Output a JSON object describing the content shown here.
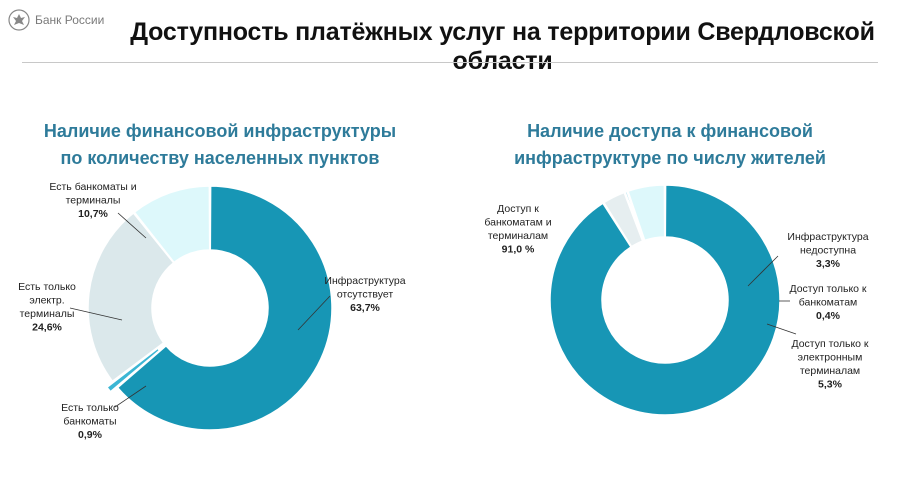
{
  "header": {
    "logo_text": "Банк России",
    "title": "Доступность платёжных услуг на территории Свердловской области"
  },
  "chart_data": [
    {
      "type": "pie",
      "title_lines": [
        "Наличие финансовой инфраструктуры",
        "по количеству населенных пунктов"
      ],
      "unit": "%",
      "slices": [
        {
          "label_lines": [
            "Инфраструктура",
            "отсутствует"
          ],
          "value": 63.7,
          "value_text": "63,7%",
          "color": "#1796b5",
          "exploded": false
        },
        {
          "label_lines": [
            "Есть только",
            "банкоматы"
          ],
          "value": 0.9,
          "value_text": "0,9%",
          "color": "#3cb6d4",
          "exploded": true
        },
        {
          "label_lines": [
            "Есть только",
            "электр.",
            "терминалы"
          ],
          "value": 24.6,
          "value_text": "24,6%",
          "color": "#dbe8eb",
          "exploded": false
        },
        {
          "label_lines": [
            "Есть банкоматы и",
            "терминалы"
          ],
          "value": 10.7,
          "value_text": "10,7%",
          "color": "#ddf8fb",
          "exploded": false
        }
      ]
    },
    {
      "type": "pie",
      "title_lines": [
        "Наличие доступа к финансовой",
        "инфраструктуре по числу жителей"
      ],
      "unit": "%",
      "slices": [
        {
          "label_lines": [
            "Доступ к",
            "банкоматам и",
            "терминалам"
          ],
          "value": 91.0,
          "value_text": "91,0 %",
          "color": "#1796b5",
          "exploded": false
        },
        {
          "label_lines": [
            "Инфраструктура",
            "недоступна"
          ],
          "value": 3.3,
          "value_text": "3,3%",
          "color": "#e6eef0",
          "exploded": false
        },
        {
          "label_lines": [
            "Доступ только к",
            "банкоматам"
          ],
          "value": 0.4,
          "value_text": "0,4%",
          "color": "#3cb6d4",
          "exploded": false
        },
        {
          "label_lines": [
            "Доступ только к",
            "электронным",
            "терминалам"
          ],
          "value": 5.3,
          "value_text": "5,3%",
          "color": "#ddf8fb",
          "exploded": false
        }
      ]
    }
  ]
}
